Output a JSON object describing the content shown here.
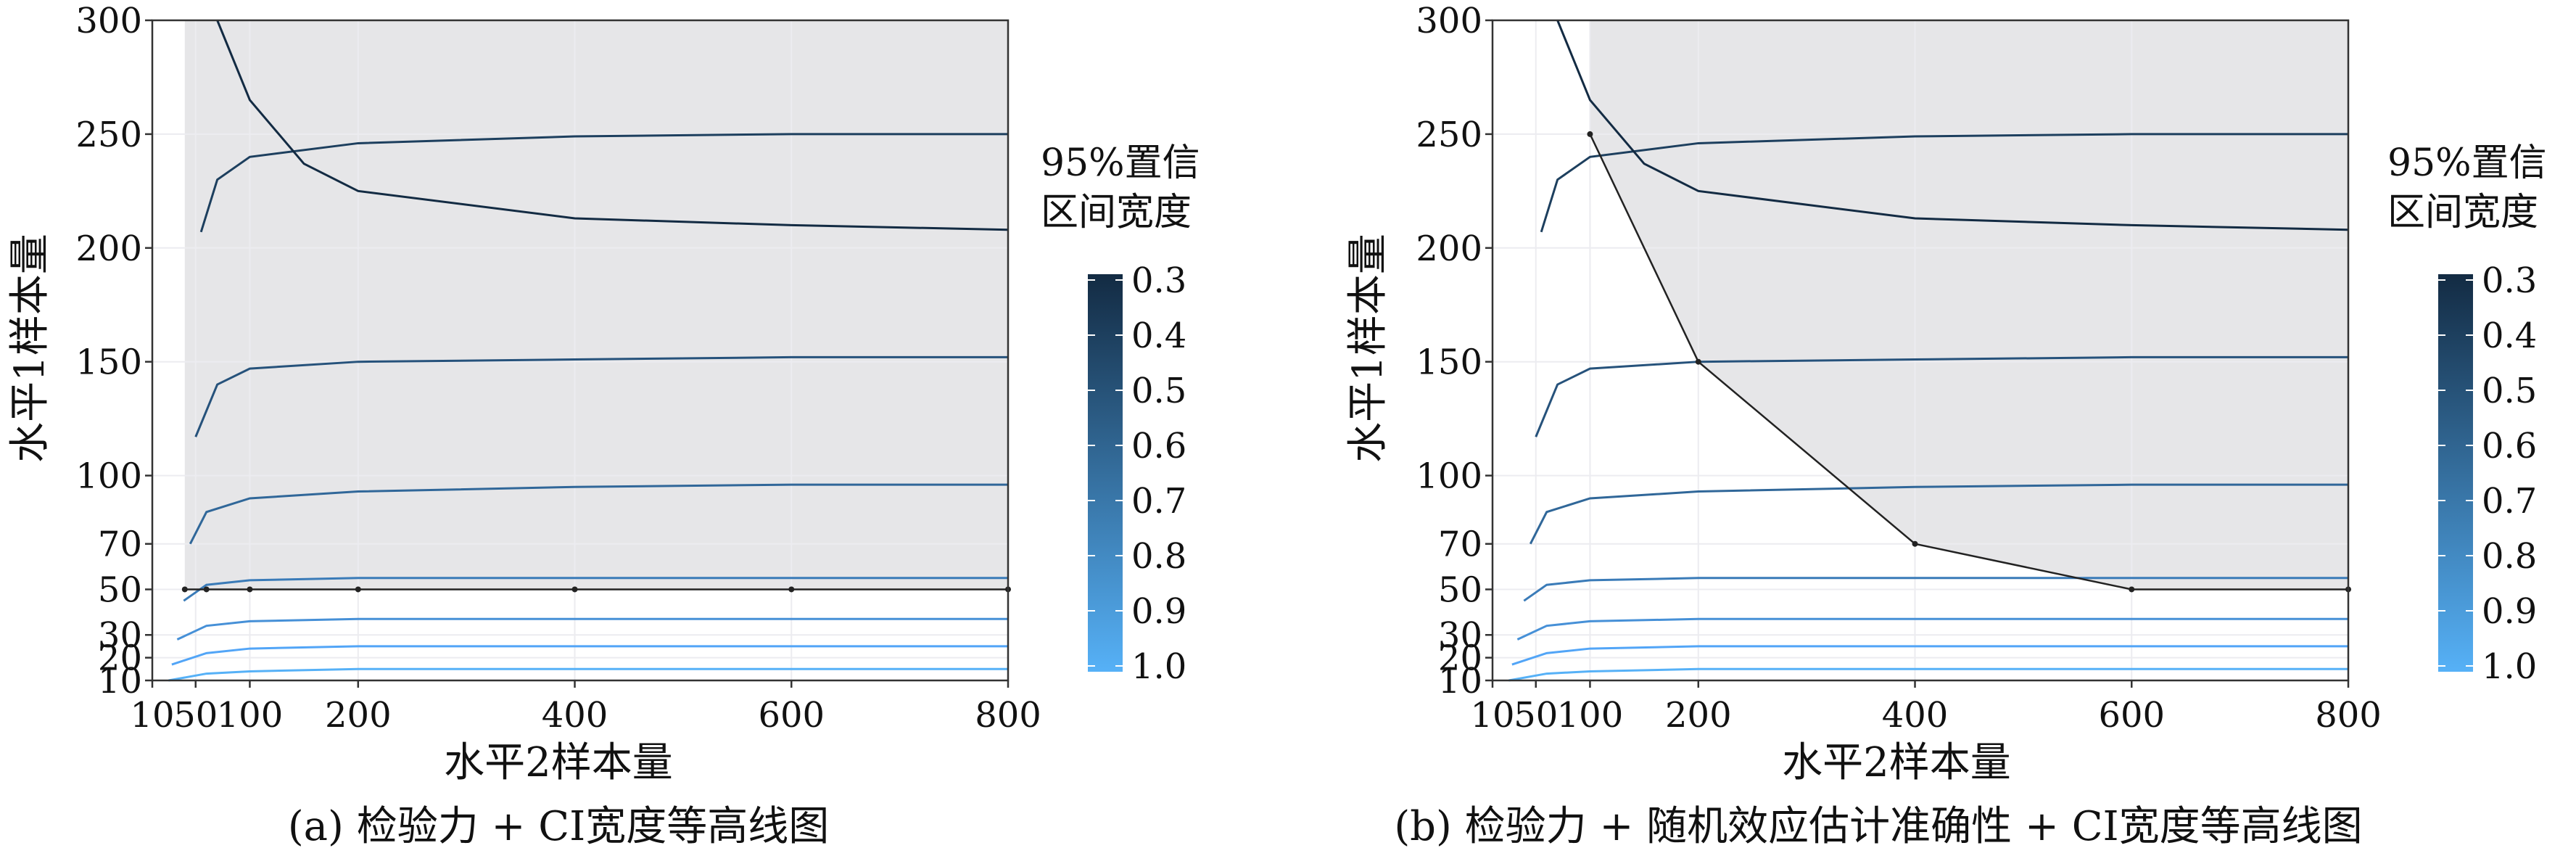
{
  "chart_data": [
    {
      "type": "line",
      "subtype": "contour",
      "caption": "(a) 检验力 + CI宽度等高线图",
      "xlabel": "水平2样本量",
      "ylabel": "水平1样本量",
      "xlim": [
        10,
        800
      ],
      "ylim": [
        10,
        300
      ],
      "xticks": [
        10,
        50,
        100,
        200,
        400,
        600,
        800
      ],
      "xtick_labels": [
        "10",
        "50",
        "100",
        "200",
        "400",
        "600",
        "800"
      ],
      "yticks": [
        10,
        20,
        30,
        50,
        70,
        100,
        150,
        200,
        250,
        300
      ],
      "grid": true,
      "contours": [
        {
          "level": 1.0,
          "points": [
            [
              25,
              10
            ],
            [
              60,
              13
            ],
            [
              100,
              14
            ],
            [
              200,
              15
            ],
            [
              400,
              15
            ],
            [
              600,
              15
            ],
            [
              800,
              15
            ]
          ]
        },
        {
          "level": 0.9,
          "points": [
            [
              28,
              17
            ],
            [
              60,
              22
            ],
            [
              100,
              24
            ],
            [
              200,
              25
            ],
            [
              400,
              25
            ],
            [
              600,
              25
            ],
            [
              800,
              25
            ]
          ]
        },
        {
          "level": 0.8,
          "points": [
            [
              33,
              28
            ],
            [
              60,
              34
            ],
            [
              100,
              36
            ],
            [
              200,
              37
            ],
            [
              400,
              37
            ],
            [
              600,
              37
            ],
            [
              800,
              37
            ]
          ]
        },
        {
          "level": 0.7,
          "points": [
            [
              39,
              45
            ],
            [
              60,
              52
            ],
            [
              100,
              54
            ],
            [
              200,
              55
            ],
            [
              400,
              55
            ],
            [
              600,
              55
            ],
            [
              800,
              55
            ]
          ]
        },
        {
          "level": 0.6,
          "points": [
            [
              45,
              70
            ],
            [
              60,
              84
            ],
            [
              100,
              90
            ],
            [
              200,
              93
            ],
            [
              400,
              95
            ],
            [
              600,
              96
            ],
            [
              800,
              96
            ]
          ]
        },
        {
          "level": 0.5,
          "points": [
            [
              50,
              117
            ],
            [
              70,
              140
            ],
            [
              100,
              147
            ],
            [
              200,
              150
            ],
            [
              400,
              151
            ],
            [
              600,
              152
            ],
            [
              800,
              152
            ]
          ]
        },
        {
          "level": 0.4,
          "points": [
            [
              55,
              207
            ],
            [
              70,
              230
            ],
            [
              100,
              240
            ],
            [
              200,
              246
            ],
            [
              400,
              249
            ],
            [
              600,
              250
            ],
            [
              800,
              250
            ]
          ]
        },
        {
          "level": 0.3,
          "points": [
            [
              70,
              300
            ],
            [
              100,
              265
            ],
            [
              150,
              237
            ],
            [
              200,
              225
            ],
            [
              400,
              213
            ],
            [
              600,
              210
            ],
            [
              800,
              208
            ]
          ]
        }
      ],
      "power_boundary": [
        [
          40,
          50
        ],
        [
          60,
          50
        ],
        [
          100,
          50
        ],
        [
          200,
          50
        ],
        [
          400,
          50
        ],
        [
          600,
          50
        ],
        [
          800,
          50
        ]
      ],
      "shaded_region": "水平1样本量 ≥ 50"
    },
    {
      "type": "line",
      "subtype": "contour",
      "caption": "(b) 检验力 + 随机效应估计准确性 + CI宽度等高线图",
      "xlabel": "水平2样本量",
      "ylabel": "水平1样本量",
      "xlim": [
        10,
        800
      ],
      "ylim": [
        10,
        300
      ],
      "xticks": [
        10,
        50,
        100,
        200,
        400,
        600,
        800
      ],
      "xtick_labels": [
        "10",
        "50",
        "100",
        "200",
        "400",
        "600",
        "800"
      ],
      "yticks": [
        10,
        20,
        30,
        50,
        70,
        100,
        150,
        200,
        250,
        300
      ],
      "grid": true,
      "contours": [
        {
          "level": 1.0,
          "points": [
            [
              25,
              10
            ],
            [
              60,
              13
            ],
            [
              100,
              14
            ],
            [
              200,
              15
            ],
            [
              400,
              15
            ],
            [
              600,
              15
            ],
            [
              800,
              15
            ]
          ]
        },
        {
          "level": 0.9,
          "points": [
            [
              28,
              17
            ],
            [
              60,
              22
            ],
            [
              100,
              24
            ],
            [
              200,
              25
            ],
            [
              400,
              25
            ],
            [
              600,
              25
            ],
            [
              800,
              25
            ]
          ]
        },
        {
          "level": 0.8,
          "points": [
            [
              33,
              28
            ],
            [
              60,
              34
            ],
            [
              100,
              36
            ],
            [
              200,
              37
            ],
            [
              400,
              37
            ],
            [
              600,
              37
            ],
            [
              800,
              37
            ]
          ]
        },
        {
          "level": 0.7,
          "points": [
            [
              39,
              45
            ],
            [
              60,
              52
            ],
            [
              100,
              54
            ],
            [
              200,
              55
            ],
            [
              400,
              55
            ],
            [
              600,
              55
            ],
            [
              800,
              55
            ]
          ]
        },
        {
          "level": 0.6,
          "points": [
            [
              45,
              70
            ],
            [
              60,
              84
            ],
            [
              100,
              90
            ],
            [
              200,
              93
            ],
            [
              400,
              95
            ],
            [
              600,
              96
            ],
            [
              800,
              96
            ]
          ]
        },
        {
          "level": 0.5,
          "points": [
            [
              50,
              117
            ],
            [
              70,
              140
            ],
            [
              100,
              147
            ],
            [
              200,
              150
            ],
            [
              400,
              151
            ],
            [
              600,
              152
            ],
            [
              800,
              152
            ]
          ]
        },
        {
          "level": 0.4,
          "points": [
            [
              55,
              207
            ],
            [
              70,
              230
            ],
            [
              100,
              240
            ],
            [
              200,
              246
            ],
            [
              400,
              249
            ],
            [
              600,
              250
            ],
            [
              800,
              250
            ]
          ]
        },
        {
          "level": 0.3,
          "points": [
            [
              70,
              300
            ],
            [
              100,
              265
            ],
            [
              150,
              237
            ],
            [
              200,
              225
            ],
            [
              400,
              213
            ],
            [
              600,
              210
            ],
            [
              800,
              208
            ]
          ]
        }
      ],
      "power_boundary": [
        [
          100,
          250
        ],
        [
          200,
          150
        ],
        [
          400,
          70
        ],
        [
          600,
          50
        ],
        [
          800,
          50
        ]
      ],
      "shaded_region": "检验力与随机效应估计准确性边界以上"
    }
  ],
  "legend": {
    "title_line1": "95%置信",
    "title_line2": "区间宽度",
    "levels": [
      "0.3",
      "0.4",
      "0.5",
      "0.6",
      "0.7",
      "0.8",
      "0.9",
      "1.0"
    ],
    "colors": [
      "#132b43",
      "#1d3f5e",
      "#26527b",
      "#306799",
      "#3a7bb8",
      "#4690d7",
      "#52a5f7",
      "#56b1f7"
    ]
  },
  "colors": {
    "shade": "#e6e6e8",
    "grid": "#ececf0",
    "frame": "#333333",
    "boundary": "#222222"
  }
}
